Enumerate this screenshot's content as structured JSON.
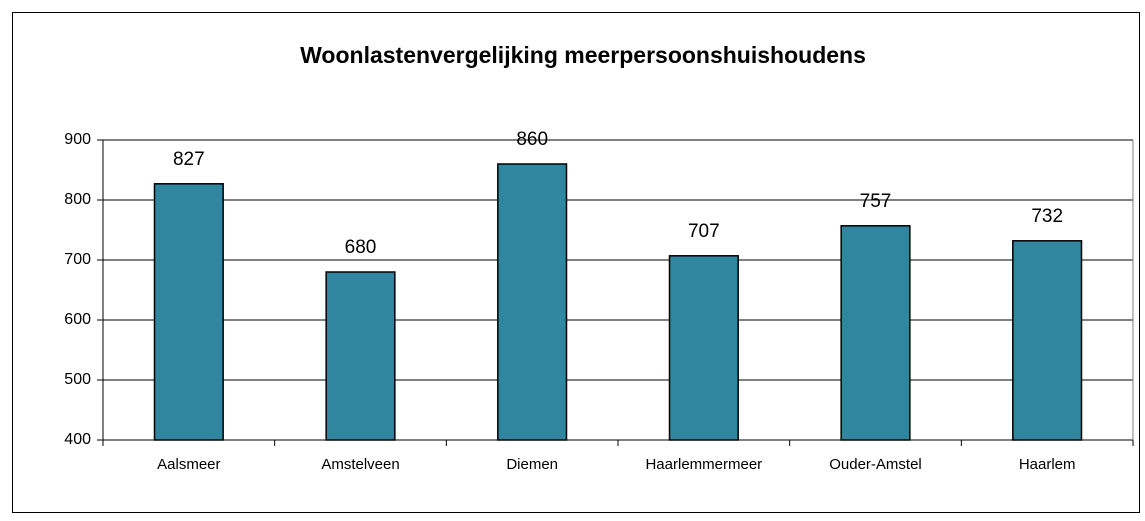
{
  "chart_data": {
    "type": "bar",
    "title": "Woonlastenvergelijking meerpersoonshuishoudens",
    "categories": [
      "Aalsmeer",
      "Amstelveen",
      "Diemen",
      "Haarlemmermeer",
      "Ouder-Amstel",
      "Haarlem"
    ],
    "values": [
      827,
      680,
      860,
      707,
      757,
      732
    ],
    "color": "#31869f",
    "ylim": [
      400,
      900
    ],
    "yticks": [
      400,
      500,
      600,
      700,
      800,
      900
    ],
    "grid": true
  }
}
